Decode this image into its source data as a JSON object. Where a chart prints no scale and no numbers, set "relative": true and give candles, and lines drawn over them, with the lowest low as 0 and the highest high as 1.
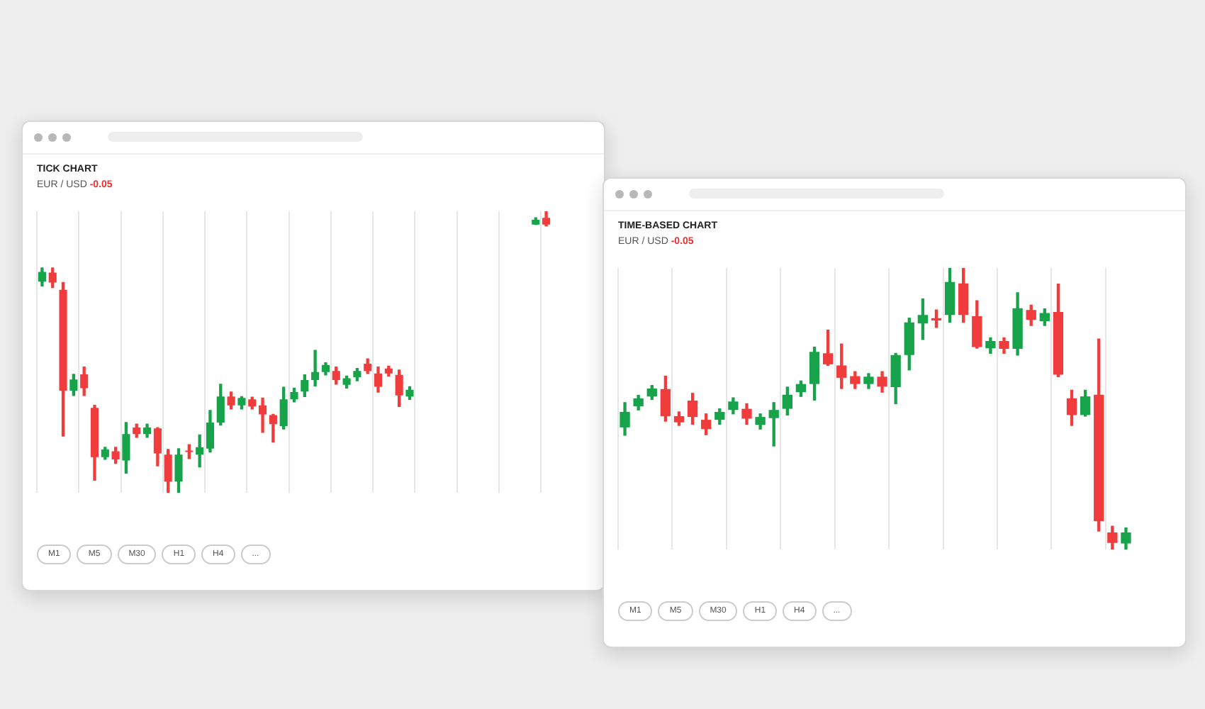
{
  "chart_data": [
    {
      "type": "candlestick",
      "title": "TICK CHART",
      "subtitle": "EUR / USD -0.05",
      "relative": true,
      "grid": "x",
      "categories": [
        null,
        null,
        null,
        null,
        null,
        null,
        null,
        null,
        null,
        null,
        null,
        null,
        null,
        null,
        null,
        null,
        null,
        null,
        null,
        null,
        null,
        null,
        null,
        null,
        null,
        null,
        null,
        null,
        null,
        null,
        null,
        null,
        null,
        null,
        null,
        null,
        null,
        null,
        null,
        null,
        null,
        null,
        null,
        null,
        null,
        null,
        null,
        null,
        null
      ],
      "ohlc": [
        [
          0.75,
          0.799,
          0.735,
          0.785
        ],
        [
          0.782,
          0.799,
          0.729,
          0.747
        ],
        [
          0.721,
          0.747,
          0.202,
          0.363
        ],
        [
          0.363,
          0.421,
          0.346,
          0.403
        ],
        [
          0.421,
          0.447,
          0.346,
          0.372
        ],
        [
          0.302,
          0.311,
          0.045,
          0.127
        ],
        [
          0.127,
          0.162,
          0.119,
          0.154
        ],
        [
          0.148,
          0.162,
          0.105,
          0.119
        ],
        [
          0.115,
          0.25,
          0.07,
          0.209
        ],
        [
          0.232,
          0.244,
          0.197,
          0.209
        ],
        [
          0.209,
          0.244,
          0.197,
          0.232
        ],
        [
          0.229,
          0.232,
          0.096,
          0.14
        ],
        [
          0.136,
          0.154,
          0,
          0.04
        ],
        [
          0.04,
          0.157,
          0,
          0.136
        ],
        [
          0.15,
          0.171,
          0.122,
          0.145
        ],
        [
          0.136,
          0.206,
          0.092,
          0.162
        ],
        [
          0.157,
          0.293,
          0.145,
          0.25
        ],
        [
          0.25,
          0.386,
          0.241,
          0.342
        ],
        [
          0.342,
          0.358,
          0.298,
          0.311
        ],
        [
          0.311,
          0.342,
          0.298,
          0.337
        ],
        [
          0.332,
          0.34,
          0.298,
          0.307
        ],
        [
          0.311,
          0.337,
          0.215,
          0.279
        ],
        [
          0.276,
          0.279,
          0.18,
          0.244
        ],
        [
          0.237,
          0.375,
          0.227,
          0.332
        ],
        [
          0.332,
          0.372,
          0.323,
          0.358
        ],
        [
          0.36,
          0.419,
          0.342,
          0.401
        ],
        [
          0.401,
          0.506,
          0.38,
          0.429
        ],
        [
          0.429,
          0.462,
          0.419,
          0.454
        ],
        [
          0.433,
          0.447,
          0.386,
          0.401
        ],
        [
          0.384,
          0.415,
          0.372,
          0.407
        ],
        [
          0.41,
          0.442,
          0.398,
          0.433
        ],
        [
          0.459,
          0.476,
          0.424,
          0.433
        ],
        [
          0.424,
          0.447,
          0.358,
          0.377
        ],
        [
          0.442,
          0.45,
          0.415,
          0.424
        ],
        [
          0.419,
          0.436,
          0.307,
          0.346
        ],
        [
          0.342,
          0.377,
          0.332,
          0.366
        ],
        null,
        null,
        null,
        null,
        null,
        null,
        null,
        null,
        null,
        null,
        null,
        [
          0.953,
          0.977,
          0.953,
          0.97
        ],
        [
          0.977,
          1,
          0.948,
          0.953
        ]
      ],
      "annotations": [
        "M1",
        "M5",
        "M30",
        "H1",
        "H4",
        "..."
      ]
    },
    {
      "type": "candlestick",
      "title": "TIME-BASED CHART",
      "subtitle": "EUR / USD -0.05",
      "relative": true,
      "grid": "x",
      "categories": [
        null,
        null,
        null,
        null,
        null,
        null,
        null,
        null,
        null,
        null,
        null,
        null,
        null,
        null,
        null,
        null,
        null,
        null,
        null,
        null,
        null,
        null,
        null,
        null,
        null,
        null,
        null,
        null,
        null,
        null,
        null,
        null,
        null,
        null,
        null,
        null,
        null,
        null
      ],
      "ohlc": [
        [
          0.434,
          0.522,
          0.406,
          0.489
        ],
        [
          0.509,
          0.548,
          0.496,
          0.537
        ],
        [
          0.544,
          0.583,
          0.533,
          0.572
        ],
        [
          0.57,
          0.616,
          0.456,
          0.474
        ],
        [
          0.474,
          0.489,
          0.441,
          0.452
        ],
        [
          0.529,
          0.555,
          0.445,
          0.471
        ],
        [
          0.461,
          0.482,
          0.408,
          0.428
        ],
        [
          0.461,
          0.5,
          0.445,
          0.489
        ],
        [
          0.496,
          0.539,
          0.482,
          0.526
        ],
        [
          0.5,
          0.518,
          0.445,
          0.465
        ],
        [
          0.443,
          0.482,
          0.428,
          0.471
        ],
        [
          0.467,
          0.522,
          0.368,
          0.496
        ],
        [
          0.5,
          0.577,
          0.478,
          0.55
        ],
        [
          0.559,
          0.599,
          0.544,
          0.588
        ],
        [
          0.588,
          0.719,
          0.531,
          0.702
        ],
        [
          0.697,
          0.779,
          0.654,
          0.658
        ],
        [
          0.654,
          0.73,
          0.572,
          0.61
        ],
        [
          0.616,
          0.632,
          0.572,
          0.588
        ],
        [
          0.588,
          0.625,
          0.572,
          0.614
        ],
        [
          0.614,
          0.632,
          0.559,
          0.579
        ],
        [
          0.577,
          0.697,
          0.518,
          0.691
        ],
        [
          0.691,
          0.822,
          0.638,
          0.807
        ],
        [
          0.803,
          0.89,
          0.746,
          0.833
        ],
        [
          0.822,
          0.851,
          0.789,
          0.814
        ],
        [
          0.833,
          1,
          0.807,
          0.95
        ],
        [
          0.945,
          1,
          0.807,
          0.833
        ],
        [
          0.829,
          0.884,
          0.715,
          0.719
        ],
        [
          0.715,
          0.752,
          0.697,
          0.741
        ],
        [
          0.741,
          0.752,
          0.697,
          0.713
        ],
        [
          0.713,
          0.912,
          0.691,
          0.857
        ],
        [
          0.851,
          0.868,
          0.796,
          0.816
        ],
        [
          0.811,
          0.855,
          0.796,
          0.84
        ],
        [
          0.844,
          0.943,
          0.614,
          0.621
        ],
        [
          0.537,
          0.566,
          0.441,
          0.478
        ],
        [
          0.478,
          0.566,
          0.474,
          0.544
        ],
        [
          0.55,
          0.748,
          0.066,
          0.101
        ],
        [
          0.061,
          0.083,
          0.002,
          0.024
        ],
        [
          0.022,
          0.077,
          0,
          0.061
        ]
      ],
      "annotations": [
        "M1",
        "M5",
        "M30",
        "H1",
        "H4",
        "..."
      ]
    }
  ]
}
